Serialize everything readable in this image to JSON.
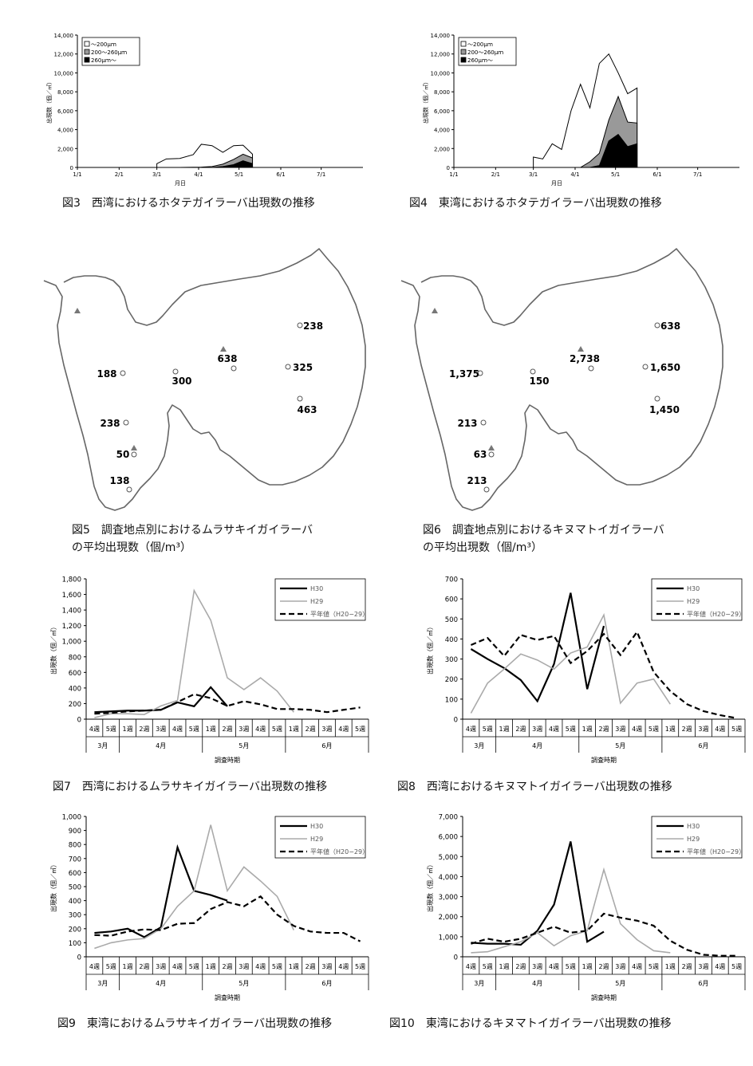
{
  "captions": {
    "fig3": "図3　西湾におけるホタテガイラーバ出現数の推移",
    "fig4": "図4　東湾におけるホタテガイラーバ出現数の推移",
    "fig5_line1": "図5　調査地点別におけるムラサキイガイラーバ",
    "fig5_line2": "の平均出現数（個/m³）",
    "fig6_line1": "図6　調査地点別におけるキヌマトイガイラーバ",
    "fig6_line2": "の平均出現数（個/m³）",
    "fig7": "図7　西湾におけるムラサキイガイラーバ出現数の推移",
    "fig8": "図8　西湾におけるキヌマトイガイラーバ出現数の推移",
    "fig9": "図9　東湾におけるムラサキイガイラーバ出現数の推移",
    "fig10": "図10　東湾におけるキヌマトイガイラーバ出現数の推移"
  },
  "chart_data": [
    {
      "id": "fig3",
      "type": "area",
      "ylabel": "出現数（個／㎥）",
      "xlabel": "月日",
      "ylim": [
        0,
        14000
      ],
      "yticks": [
        "0",
        "2,000",
        "4,000",
        "6,000",
        "8,000",
        "10,000",
        "12,000",
        "14,000"
      ],
      "xticks": [
        "1/1",
        "2/1",
        "3/1",
        "4/1",
        "5/1",
        "6/1",
        "7/1"
      ],
      "legend": [
        "～200μｍ",
        "200～260μｍ",
        "260μｍ～"
      ],
      "legend_colors": [
        "#ffffff",
        "#999999",
        "#000000"
      ],
      "x_days": [
        59,
        66,
        76,
        86,
        92,
        100,
        108,
        116,
        123,
        130
      ],
      "series": [
        {
          "name": "～200μｍ",
          "values": [
            400,
            900,
            950,
            1350,
            2450,
            2300,
            1600,
            2300,
            2350,
            1400
          ]
        },
        {
          "name": "200～260μｍ",
          "values": [
            0,
            0,
            0,
            20,
            30,
            100,
            350,
            850,
            1400,
            1000
          ]
        },
        {
          "name": "260μｍ～",
          "values": [
            0,
            0,
            0,
            0,
            0,
            0,
            100,
            300,
            700,
            400
          ]
        }
      ]
    },
    {
      "id": "fig4",
      "type": "area",
      "ylabel": "出現数（個／㎥）",
      "xlabel": "月日",
      "ylim": [
        0,
        14000
      ],
      "yticks": [
        "0",
        "2,000",
        "4,000",
        "6,000",
        "8,000",
        "10,000",
        "12,000",
        "14,000"
      ],
      "xticks": [
        "1/1",
        "2/1",
        "3/1",
        "4/1",
        "5/1",
        "6/1",
        "7/1"
      ],
      "legend": [
        "～200μｍ",
        "200～260μｍ",
        "260μｍ～"
      ],
      "legend_colors": [
        "#ffffff",
        "#999999",
        "#000000"
      ],
      "x_days": [
        59,
        66,
        73,
        80,
        87,
        94,
        101,
        108,
        115,
        122,
        129,
        136
      ],
      "series": [
        {
          "name": "～200μｍ",
          "values": [
            1100,
            900,
            2500,
            1900,
            6000,
            8800,
            6300,
            11000,
            12000,
            10000,
            7800,
            8400
          ]
        },
        {
          "name": "200～260μｍ",
          "values": [
            0,
            0,
            0,
            0,
            0,
            0,
            600,
            1500,
            5000,
            7500,
            4800,
            4700
          ]
        },
        {
          "name": "260μｍ～",
          "values": [
            0,
            0,
            0,
            0,
            0,
            0,
            0,
            200,
            2800,
            3500,
            2200,
            2500
          ]
        }
      ]
    },
    {
      "id": "fig7",
      "type": "line",
      "ylabel": "出現数（個／㎥）",
      "xlabel": "調査時期",
      "ylim": [
        0,
        1800
      ],
      "yticks": [
        "0",
        "200",
        "400",
        "600",
        "800",
        "1,000",
        "1,200",
        "1,400",
        "1,600",
        "1,800"
      ],
      "categories": [
        "4週",
        "5週",
        "1週",
        "2週",
        "3週",
        "4週",
        "5週",
        "1週",
        "2週",
        "3週",
        "4週",
        "5週",
        "1週",
        "2週",
        "3週",
        "4週",
        "5週"
      ],
      "months": [
        "3月",
        "4月",
        "5月",
        "6月"
      ],
      "series": [
        {
          "name": "H30",
          "values": [
            90,
            100,
            110,
            110,
            120,
            215,
            165,
            410,
            165,
            null,
            null,
            null,
            null,
            null,
            null,
            null,
            null
          ]
        },
        {
          "name": "H29",
          "values": [
            20,
            70,
            70,
            60,
            170,
            240,
            1650,
            1270,
            530,
            380,
            530,
            360,
            90,
            null,
            null,
            null,
            null
          ]
        },
        {
          "name": "平年値（H20−29）",
          "values": [
            70,
            80,
            100,
            110,
            120,
            220,
            320,
            270,
            170,
            230,
            190,
            130,
            130,
            120,
            90,
            120,
            150
          ]
        }
      ]
    },
    {
      "id": "fig8",
      "type": "line",
      "ylabel": "出現数（個／㎥）",
      "xlabel": "調査時期",
      "ylim": [
        0,
        700
      ],
      "yticks": [
        "0",
        "100",
        "200",
        "300",
        "400",
        "500",
        "600",
        "700"
      ],
      "categories": [
        "4週",
        "5週",
        "1週",
        "2週",
        "3週",
        "4週",
        "5週",
        "1週",
        "2週",
        "3週",
        "4週",
        "5週",
        "1週",
        "2週",
        "3週",
        "4週",
        "5週"
      ],
      "months": [
        "3月",
        "4月",
        "5月",
        "6月"
      ],
      "series": [
        {
          "name": "H30",
          "values": [
            350,
            300,
            255,
            195,
            90,
            275,
            630,
            150,
            465,
            null,
            null,
            null,
            null,
            null,
            null,
            null,
            null
          ]
        },
        {
          "name": "H29",
          "values": [
            30,
            180,
            250,
            325,
            295,
            250,
            330,
            360,
            520,
            80,
            180,
            200,
            75,
            null,
            null,
            null,
            null
          ]
        },
        {
          "name": "平年値（H20−29）",
          "values": [
            370,
            405,
            315,
            420,
            395,
            415,
            280,
            340,
            425,
            320,
            435,
            235,
            140,
            75,
            40,
            20,
            5
          ]
        }
      ]
    },
    {
      "id": "fig9",
      "type": "line",
      "ylabel": "出現数（個／㎥）",
      "xlabel": "調査時期",
      "ylim": [
        0,
        1000
      ],
      "yticks": [
        "0",
        "100",
        "200",
        "300",
        "400",
        "500",
        "600",
        "700",
        "800",
        "900",
        "1,000"
      ],
      "categories": [
        "4週",
        "5週",
        "1週",
        "2週",
        "3週",
        "4週",
        "5週",
        "1週",
        "2週",
        "3週",
        "4週",
        "5週",
        "1週",
        "2週",
        "3週",
        "4週",
        "5週"
      ],
      "months": [
        "3月",
        "4月",
        "5月",
        "6月"
      ],
      "series": [
        {
          "name": "H30",
          "values": [
            170,
            180,
            200,
            140,
            210,
            780,
            470,
            440,
            400,
            null,
            null,
            null,
            null,
            null,
            null,
            null,
            null
          ]
        },
        {
          "name": "H29",
          "values": [
            60,
            100,
            120,
            130,
            200,
            360,
            470,
            940,
            470,
            640,
            540,
            430,
            190,
            null,
            null,
            null,
            null
          ]
        },
        {
          "name": "平年値（H20−29）",
          "values": [
            155,
            150,
            180,
            195,
            190,
            235,
            240,
            340,
            390,
            360,
            430,
            300,
            220,
            180,
            170,
            170,
            110
          ]
        }
      ]
    },
    {
      "id": "fig10",
      "type": "line",
      "ylabel": "出現数（個／㎥）",
      "xlabel": "調査時期",
      "ylim": [
        0,
        7000
      ],
      "yticks": [
        "0",
        "1,000",
        "2,000",
        "3,000",
        "4,000",
        "5,000",
        "6,000",
        "7,000"
      ],
      "categories": [
        "4週",
        "5週",
        "1週",
        "2週",
        "3週",
        "4週",
        "5週",
        "1週",
        "2週",
        "3週",
        "4週",
        "5週",
        "1週",
        "2週",
        "3週",
        "4週",
        "5週"
      ],
      "months": [
        "3月",
        "4月",
        "5月",
        "6月"
      ],
      "series": [
        {
          "name": "H30",
          "values": [
            700,
            650,
            650,
            600,
            1300,
            2600,
            5750,
            750,
            1250,
            null,
            null,
            null,
            null,
            null,
            null,
            null,
            null
          ]
        },
        {
          "name": "H29",
          "values": [
            200,
            250,
            500,
            750,
            1200,
            550,
            1050,
            1300,
            4350,
            1650,
            850,
            300,
            200,
            null,
            null,
            null,
            null
          ]
        },
        {
          "name": "平年値（H20−29）",
          "values": [
            650,
            900,
            750,
            900,
            1200,
            1500,
            1200,
            1300,
            2150,
            1950,
            1800,
            1550,
            800,
            350,
            100,
            50,
            50
          ]
        }
      ]
    }
  ],
  "maps": [
    {
      "id": "fig5",
      "stations": [
        {
          "label": "238"
        },
        {
          "label": "638"
        },
        {
          "label": "325"
        },
        {
          "label": "463"
        },
        {
          "label": "300"
        },
        {
          "label": "188"
        },
        {
          "label": "238"
        },
        {
          "label": "50"
        },
        {
          "label": "138"
        }
      ]
    },
    {
      "id": "fig6",
      "stations": [
        {
          "label": "638"
        },
        {
          "label": "2,738"
        },
        {
          "label": "1,650"
        },
        {
          "label": "1,450"
        },
        {
          "label": "150"
        },
        {
          "label": "1,375"
        },
        {
          "label": "213"
        },
        {
          "label": "63"
        },
        {
          "label": "213"
        }
      ]
    }
  ]
}
